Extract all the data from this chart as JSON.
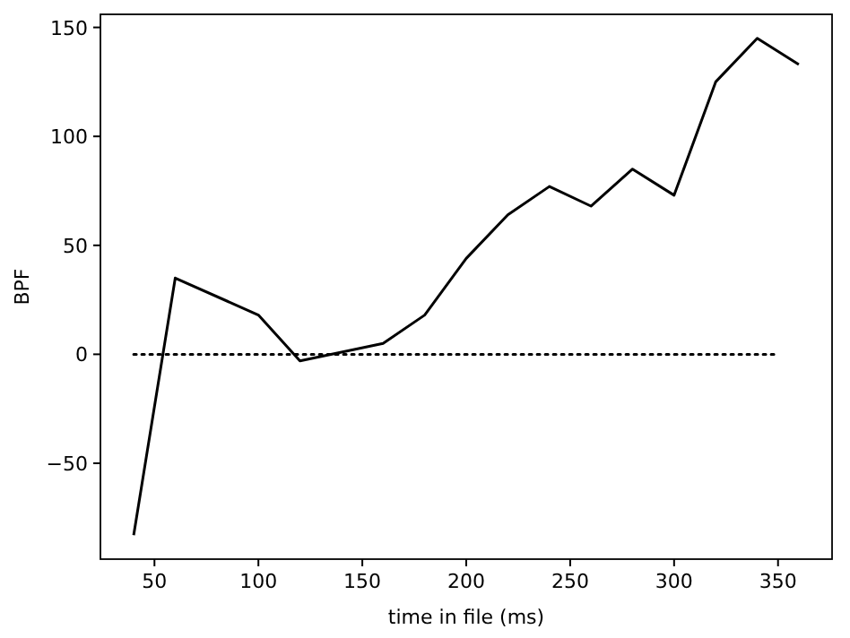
{
  "chart_data": {
    "type": "line",
    "xlabel": "time in file (ms)",
    "ylabel": "BPF",
    "xlim": [
      24,
      376
    ],
    "xticks": [
      50,
      100,
      150,
      200,
      250,
      300,
      350
    ],
    "ylim": [
      -94,
      156
    ],
    "yticks": [
      -50,
      0,
      50,
      100,
      150
    ],
    "grid": false,
    "series": [
      {
        "color": "#000000",
        "line_style": "solid",
        "x": [
          40,
          60,
          100,
          120,
          140,
          160,
          180,
          200,
          220,
          240,
          260,
          280,
          300,
          320,
          340,
          360
        ],
        "values": [
          -83,
          35,
          18,
          -3,
          1,
          5,
          18,
          44,
          64,
          77,
          68,
          85,
          73,
          125,
          145,
          133
        ]
      },
      {
        "color": "#000000",
        "line_style": "dotted",
        "x": [
          40,
          350
        ],
        "values": [
          0,
          0
        ]
      }
    ]
  }
}
